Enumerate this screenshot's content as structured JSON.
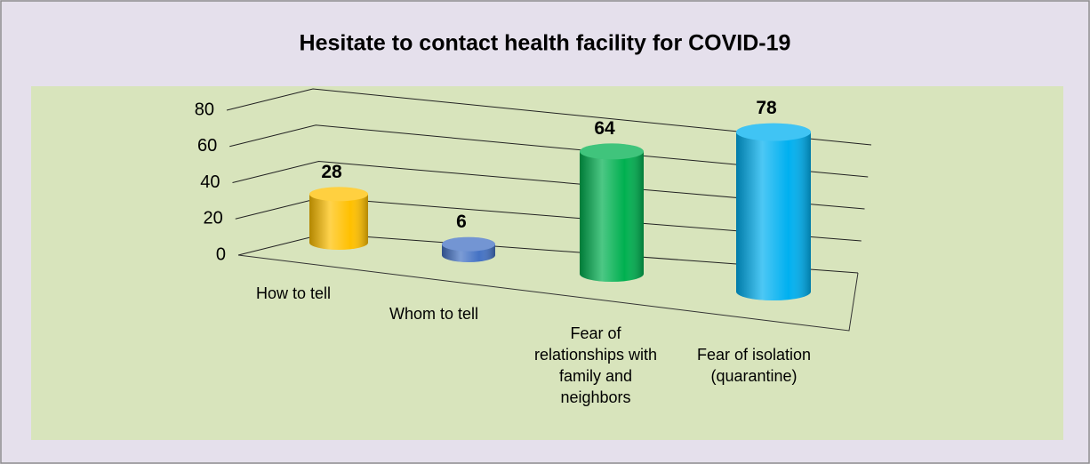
{
  "chart_data": {
    "type": "bar3d",
    "title": "Hesitate to contact health facility for COVID-19",
    "categories": [
      "How to tell",
      "Whom to tell",
      "Fear of relationships with family and neighbors",
      "Fear of isolation (quarantine)"
    ],
    "values": [
      28,
      6,
      64,
      78
    ],
    "colors": [
      "#ffc000",
      "#4472c4",
      "#00b050",
      "#00b0f0"
    ],
    "ylim": [
      0,
      80
    ],
    "yticks": [
      0,
      20,
      40,
      60,
      80
    ],
    "grid": true
  }
}
